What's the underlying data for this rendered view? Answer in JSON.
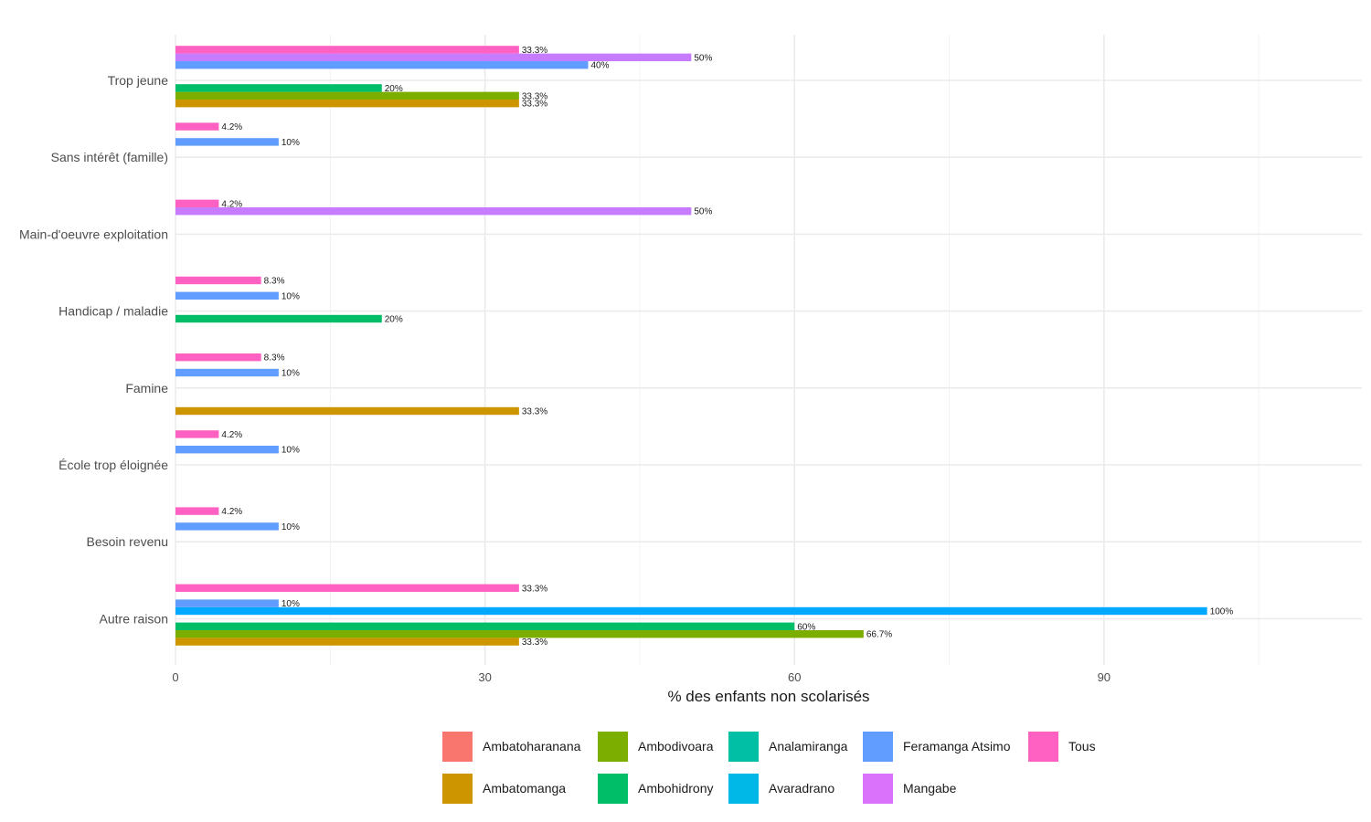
{
  "chart_data": {
    "type": "bar",
    "orientation": "horizontal",
    "title": "",
    "xlabel": "% des enfants non scolarisés",
    "ylabel": "",
    "xlim": [
      0,
      115
    ],
    "x_ticks": [
      0,
      30,
      60,
      90
    ],
    "grid": true,
    "legend_position": "bottom",
    "categories": [
      "Trop jeune",
      "Sans intérêt (famille)",
      "Main-d'oeuvre exploitation",
      "Handicap / maladie",
      "Famine",
      "École trop éloignée",
      "Besoin revenu",
      "Autre raison"
    ],
    "series": [
      {
        "name": "Ambatoharanana",
        "color": "#F8766D",
        "values": [
          null,
          null,
          null,
          null,
          null,
          null,
          null,
          null
        ],
        "labels": [
          null,
          null,
          null,
          null,
          null,
          null,
          null,
          null
        ]
      },
      {
        "name": "Ambatomanga",
        "color": "#CD9600",
        "values": [
          33.3,
          null,
          null,
          null,
          33.3,
          null,
          null,
          33.3
        ],
        "labels": [
          "33.3%",
          null,
          null,
          null,
          "33.3%",
          null,
          null,
          "33.3%"
        ]
      },
      {
        "name": "Ambodivoara",
        "color": "#7CAE00",
        "values": [
          33.3,
          null,
          null,
          null,
          null,
          null,
          null,
          66.7
        ],
        "labels": [
          "33.3%",
          null,
          null,
          null,
          null,
          null,
          null,
          "66.7%"
        ]
      },
      {
        "name": "Ambohidrony",
        "color": "#00BE67",
        "values": [
          20,
          null,
          null,
          20,
          null,
          null,
          null,
          60
        ],
        "labels": [
          "20%",
          null,
          null,
          "20%",
          null,
          null,
          null,
          "60%"
        ]
      },
      {
        "name": "Analamiranga",
        "color": "#00BFC4",
        "values": [
          null,
          null,
          null,
          null,
          null,
          null,
          null,
          null
        ],
        "labels": [
          null,
          null,
          null,
          null,
          null,
          null,
          null,
          null
        ]
      },
      {
        "name": "Avaradrano",
        "color": "#00A9FF",
        "values": [
          null,
          null,
          null,
          null,
          null,
          null,
          null,
          100
        ],
        "labels": [
          null,
          null,
          null,
          null,
          null,
          null,
          null,
          "100%"
        ]
      },
      {
        "name": "Feramanga Atsimo",
        "color": "#619CFF",
        "values": [
          40,
          10,
          null,
          10,
          10,
          10,
          10,
          10
        ],
        "labels": [
          "40%",
          "10%",
          null,
          "10%",
          "10%",
          "10%",
          "10%",
          "10%"
        ]
      },
      {
        "name": "Mangabe",
        "color": "#C77CFF",
        "values": [
          50,
          null,
          50,
          null,
          null,
          null,
          null,
          null
        ],
        "labels": [
          "50%",
          null,
          "50%",
          null,
          null,
          null,
          null,
          null
        ]
      },
      {
        "name": "Tous",
        "color": "#FF61C3",
        "values": [
          33.3,
          4.2,
          4.2,
          8.3,
          8.3,
          4.2,
          4.2,
          33.3
        ],
        "labels": [
          "33.3%",
          "4.2%",
          "4.2%",
          "8.3%",
          "8.3%",
          "4.2%",
          "4.2%",
          "33.3%"
        ]
      }
    ],
    "legend_rows": [
      [
        "Ambatoharanana",
        "Ambodivoara",
        "Analamiranga",
        "Feramanga Atsimo",
        "Tous"
      ],
      [
        "Ambatomanga",
        "Ambohidrony",
        "Avaradrano",
        "Mangabe"
      ]
    ],
    "legend_colors": {
      "Ambatoharanana": "#F8766D",
      "Ambatomanga": "#CD9600",
      "Ambodivoara": "#7CAE00",
      "Ambohidrony": "#00BE67",
      "Analamiranga": "#00BFA5",
      "Avaradrano": "#00B8E7",
      "Feramanga Atsimo": "#619CFF",
      "Mangabe": "#DB72FB",
      "Tous": "#FF61C3"
    }
  }
}
